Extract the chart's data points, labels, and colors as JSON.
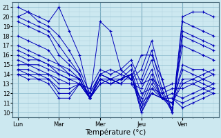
{
  "xlabel": "Température (°c)",
  "days_labels": [
    "Lun",
    "Mar",
    "Mer",
    "Jeu",
    "Ven"
  ],
  "days_positions": [
    0,
    4,
    8,
    12,
    16
  ],
  "xlim": [
    -0.5,
    19.5
  ],
  "ylim": [
    9.5,
    21.5
  ],
  "yticks": [
    10,
    11,
    12,
    13,
    14,
    15,
    16,
    17,
    18,
    19,
    20,
    21
  ],
  "bg_color": "#cce8f0",
  "grid_color_minor": "#b0d4e0",
  "grid_color_major": "#88b8cc",
  "line_color": "#0000bb",
  "series": [
    [
      21.0,
      20.5,
      20.0,
      19.5,
      21.0,
      18.5,
      16.0,
      11.5,
      19.5,
      18.5,
      14.5,
      13.5,
      16.0,
      16.0,
      13.5,
      10.0,
      20.0,
      20.5,
      20.5,
      20.0
    ],
    [
      20.0,
      20.5,
      19.5,
      19.0,
      18.0,
      16.5,
      14.5,
      12.0,
      14.0,
      14.5,
      14.0,
      13.5,
      14.5,
      17.5,
      13.5,
      10.0,
      19.5,
      19.0,
      18.5,
      18.0
    ],
    [
      20.0,
      19.5,
      19.0,
      18.5,
      17.0,
      15.5,
      14.0,
      11.5,
      14.0,
      13.5,
      13.5,
      13.5,
      13.5,
      16.5,
      12.5,
      10.0,
      18.5,
      18.0,
      17.5,
      17.0
    ],
    [
      19.5,
      19.0,
      18.5,
      18.0,
      16.0,
      15.0,
      14.0,
      11.5,
      14.0,
      13.5,
      13.0,
      13.0,
      13.0,
      15.5,
      12.0,
      10.0,
      18.0,
      17.5,
      17.0,
      16.5
    ],
    [
      18.0,
      17.5,
      17.0,
      16.5,
      15.0,
      14.5,
      13.5,
      11.5,
      13.5,
      13.0,
      13.0,
      13.0,
      12.5,
      14.5,
      11.5,
      10.5,
      17.0,
      16.5,
      16.0,
      15.5
    ],
    [
      17.0,
      16.5,
      16.0,
      15.5,
      15.0,
      14.0,
      13.5,
      11.5,
      13.5,
      13.5,
      13.0,
      13.0,
      11.5,
      14.0,
      11.5,
      11.0,
      15.0,
      14.5,
      14.5,
      14.0
    ],
    [
      16.5,
      16.0,
      15.5,
      15.0,
      14.5,
      14.0,
      13.5,
      11.5,
      13.5,
      13.5,
      13.0,
      14.0,
      11.0,
      13.5,
      11.5,
      11.0,
      14.5,
      14.0,
      13.5,
      13.0
    ],
    [
      16.0,
      15.5,
      15.5,
      15.0,
      14.0,
      13.5,
      13.5,
      11.5,
      13.5,
      13.5,
      13.5,
      14.0,
      10.5,
      13.0,
      11.5,
      11.0,
      13.5,
      13.5,
      13.0,
      12.5
    ],
    [
      15.5,
      15.0,
      15.0,
      14.5,
      14.0,
      13.5,
      13.0,
      11.5,
      13.0,
      13.5,
      13.5,
      14.0,
      10.0,
      12.5,
      11.5,
      11.0,
      13.0,
      13.0,
      12.5,
      12.0
    ],
    [
      15.0,
      15.0,
      14.5,
      14.0,
      13.5,
      13.0,
      13.0,
      11.5,
      13.0,
      13.0,
      13.5,
      14.0,
      10.0,
      12.0,
      11.5,
      11.5,
      11.0,
      11.5,
      12.0,
      12.5
    ],
    [
      14.5,
      14.5,
      14.0,
      14.0,
      13.0,
      13.0,
      13.0,
      11.5,
      13.0,
      13.0,
      13.5,
      14.0,
      10.5,
      12.0,
      11.5,
      11.5,
      10.5,
      11.0,
      11.5,
      12.0
    ],
    [
      14.5,
      14.0,
      14.0,
      13.5,
      12.5,
      12.5,
      13.0,
      11.5,
      13.5,
      13.0,
      13.5,
      14.5,
      11.0,
      12.0,
      11.5,
      12.0,
      11.5,
      12.0,
      12.5,
      13.0
    ],
    [
      14.0,
      14.0,
      13.5,
      13.5,
      12.0,
      12.0,
      13.0,
      12.0,
      14.0,
      13.5,
      14.0,
      15.0,
      12.0,
      12.5,
      12.0,
      12.5,
      12.5,
      13.0,
      13.5,
      14.0
    ],
    [
      14.0,
      13.5,
      13.5,
      13.0,
      11.5,
      11.5,
      13.0,
      12.5,
      14.5,
      14.0,
      14.5,
      15.5,
      13.0,
      13.5,
      12.5,
      13.0,
      13.0,
      13.5,
      14.0,
      14.5
    ]
  ]
}
